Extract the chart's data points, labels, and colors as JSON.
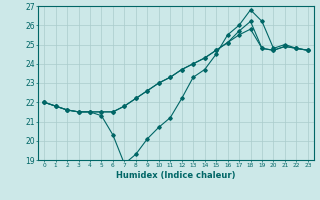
{
  "title": "",
  "xlabel": "Humidex (Indice chaleur)",
  "bg_color": "#cce8e8",
  "grid_color": "#aacccc",
  "line_color": "#006666",
  "xlim": [
    -0.5,
    23.5
  ],
  "ylim": [
    19,
    27
  ],
  "yticks": [
    19,
    20,
    21,
    22,
    23,
    24,
    25,
    26,
    27
  ],
  "xticks": [
    0,
    1,
    2,
    3,
    4,
    5,
    6,
    7,
    8,
    9,
    10,
    11,
    12,
    13,
    14,
    15,
    16,
    17,
    18,
    19,
    20,
    21,
    22,
    23
  ],
  "series": [
    [
      22.0,
      21.8,
      21.6,
      21.5,
      21.5,
      21.3,
      20.3,
      18.8,
      19.3,
      20.1,
      20.7,
      21.2,
      22.2,
      23.3,
      23.7,
      24.5,
      25.5,
      26.0,
      26.8,
      26.2,
      24.8,
      25.0,
      24.8,
      24.7
    ],
    [
      22.0,
      21.8,
      21.6,
      21.5,
      21.5,
      21.5,
      21.5,
      21.8,
      22.2,
      22.6,
      23.0,
      23.3,
      23.7,
      24.0,
      24.3,
      24.7,
      25.1,
      25.7,
      26.2,
      24.8,
      24.7,
      24.9,
      24.8,
      24.7
    ],
    [
      22.0,
      21.8,
      21.6,
      21.5,
      21.5,
      21.5,
      21.5,
      21.8,
      22.2,
      22.6,
      23.0,
      23.3,
      23.7,
      24.0,
      24.3,
      24.7,
      25.1,
      25.5,
      25.8,
      24.8,
      24.7,
      24.9,
      24.8,
      24.7
    ]
  ]
}
